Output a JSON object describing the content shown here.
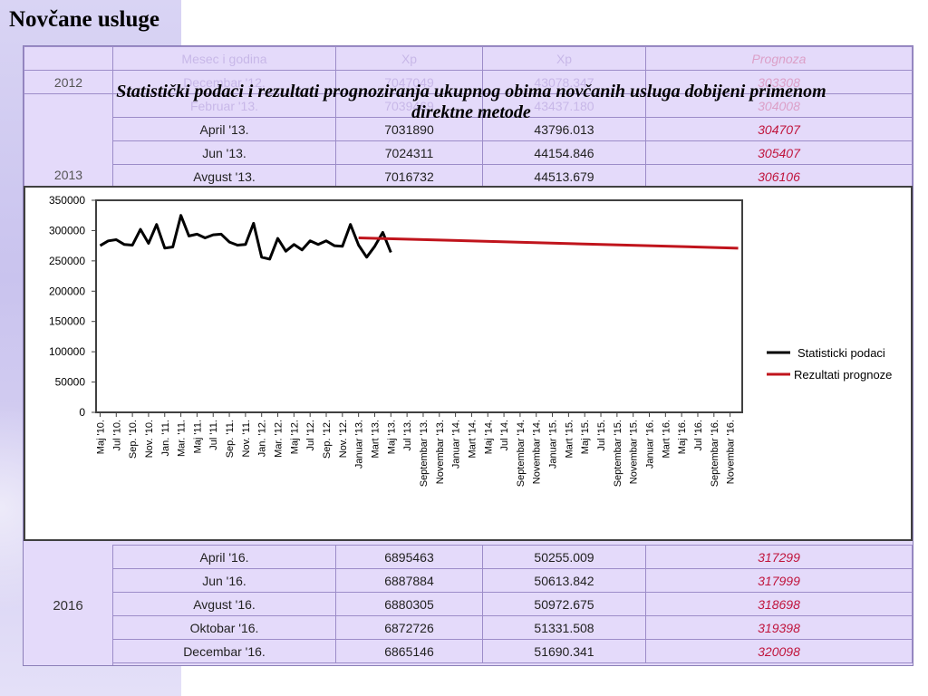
{
  "slide": {
    "title": "Novčane usluge"
  },
  "table": {
    "header": [
      "Mesec i godina",
      "Xp",
      "Xp",
      "Prognoza"
    ],
    "top_rows": [
      {
        "year": "2012",
        "period": "Decembar '12.",
        "v1": "7047049",
        "v2": "43078.347",
        "forecast": "303308"
      },
      {
        "year": "",
        "period": "Februar '13.",
        "v1": "7039469",
        "v2": "43437.180",
        "forecast": "304008"
      },
      {
        "year": "",
        "period": "April '13.",
        "v1": "7031890",
        "v2": "43796.013",
        "forecast": "304707"
      },
      {
        "year": "2013",
        "period": "Jun '13.",
        "v1": "7024311",
        "v2": "44154.846",
        "forecast": "305407"
      },
      {
        "year": "",
        "period": "Avgust '13.",
        "v1": "7016732",
        "v2": "44513.679",
        "forecast": "306106"
      }
    ],
    "year_2013": "2013",
    "year_2016": "2016",
    "bottom_rows": [
      {
        "period": "April '16.",
        "v1": "6895463",
        "v2": "50255.009",
        "forecast": "317299"
      },
      {
        "period": "Jun '16.",
        "v1": "6887884",
        "v2": "50613.842",
        "forecast": "317999"
      },
      {
        "period": "Avgust '16.",
        "v1": "6880305",
        "v2": "50972.675",
        "forecast": "318698"
      },
      {
        "period": "Oktobar '16.",
        "v1": "6872726",
        "v2": "51331.508",
        "forecast": "319398"
      },
      {
        "period": "Decembar '16.",
        "v1": "6865146",
        "v2": "51690.341",
        "forecast": "320098"
      }
    ]
  },
  "chart_data": {
    "type": "line",
    "title": "Statistički podaci i rezultati prognoziranja ukupnog obima novčanih usluga dobijeni primenom direktne metode",
    "xlabel": "",
    "ylabel": "",
    "ylim": [
      0,
      350000
    ],
    "yticks": [
      0,
      50000,
      100000,
      150000,
      200000,
      250000,
      300000,
      350000
    ],
    "x_tick_labels": [
      "Maj '10.",
      "Jul '10.",
      "Sep. '10.",
      "Nov. '10.",
      "Jan. '11.",
      "Mar. '11.",
      "Maj '11.",
      "Jul '11.",
      "Sep. '11.",
      "Nov. '11.",
      "Jan. '12.",
      "Mar. '12.",
      "Maj '12.",
      "Jul '12.",
      "Sep. '12.",
      "Nov. '12.",
      "Januar '13.",
      "Mart '13.",
      "Maj '13.",
      "Jul '13.",
      "Septembar '13.",
      "Novembar '13.",
      "Januar '14.",
      "Mart '14.",
      "Maj '14.",
      "Jul '14.",
      "Septembar '14.",
      "Novembar '14.",
      "Januar '15.",
      "Mart '15.",
      "Maj '15.",
      "Jul '15.",
      "Septembar '15.",
      "Novembar '15.",
      "Januar '16.",
      "Mart '16.",
      "Maj '16.",
      "Jul '16.",
      "Septembar '16.",
      "Novembar '16."
    ],
    "legend_position": "right",
    "grid": false,
    "series": [
      {
        "name": "Statisticki podaci",
        "color": "#000000",
        "start_month_index": 0,
        "values": [
          275000,
          283000,
          285000,
          277000,
          276000,
          302000,
          279000,
          310000,
          271000,
          273000,
          325000,
          291000,
          294000,
          288000,
          293000,
          294000,
          281000,
          276000,
          277000,
          312000,
          256000,
          253000,
          287000,
          266000,
          277000,
          268000,
          283000,
          277000,
          283000,
          275000,
          274000,
          310000,
          276000,
          256000,
          274000,
          297000,
          264000
        ]
      },
      {
        "name": "Rezultati prognoze",
        "color": "#c0141c",
        "start_month_index": 32,
        "end_month_index": 79,
        "start_value": 288000,
        "end_value": 271000
      }
    ]
  }
}
